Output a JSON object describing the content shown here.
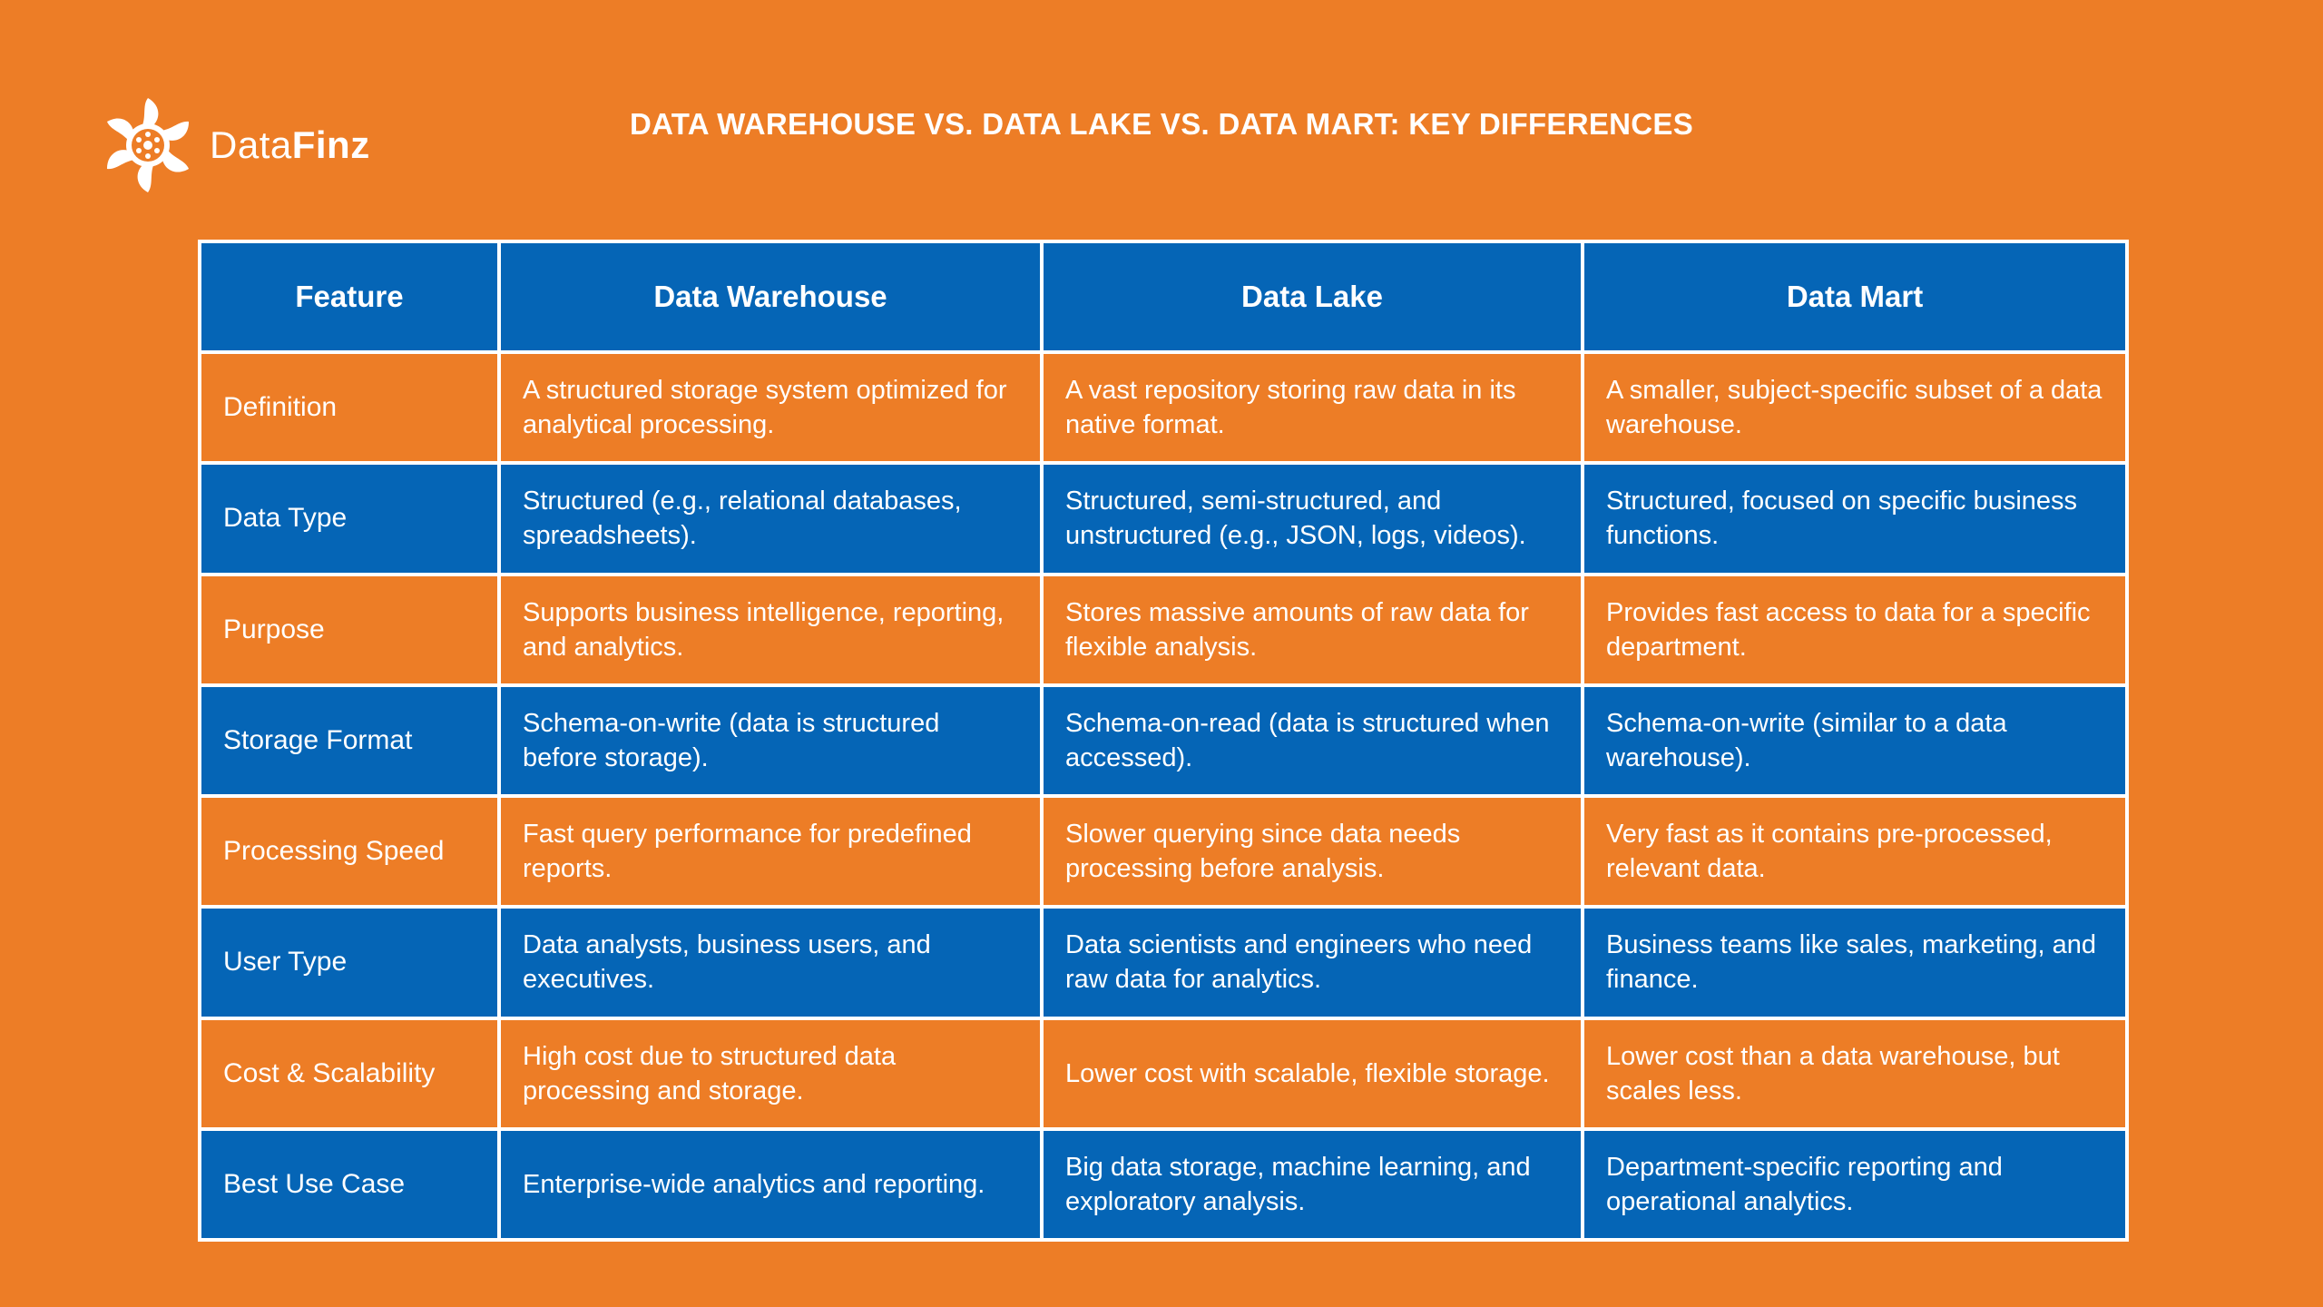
{
  "brand": {
    "name_light": "Data",
    "name_bold": "Finz",
    "background_color": "#ED7D26",
    "blue_color": "#0565B6"
  },
  "title": "DATA WAREHOUSE VS. DATA LAKE VS. DATA MART: KEY DIFFERENCES",
  "table": {
    "headers": [
      "Feature",
      "Data Warehouse",
      "Data Lake",
      "Data Mart"
    ],
    "rows": [
      {
        "feature": "Definition",
        "warehouse": "A structured storage system optimized for analytical processing.",
        "lake": "A vast repository storing raw data in its native format.",
        "mart": "A smaller, subject-specific subset of a data warehouse."
      },
      {
        "feature": "Data Type",
        "warehouse": "Structured (e.g., relational databases, spreadsheets).",
        "lake": "Structured, semi-structured, and unstructured (e.g., JSON, logs, videos).",
        "mart": "Structured, focused on specific business functions."
      },
      {
        "feature": "Purpose",
        "warehouse": "Supports business intelligence, reporting, and analytics.",
        "lake": "Stores massive amounts of raw data for flexible analysis.",
        "mart": "Provides fast access to data for a specific department."
      },
      {
        "feature": "Storage Format",
        "warehouse": "Schema-on-write (data is structured before storage).",
        "lake": "Schema-on-read (data is structured when accessed).",
        "mart": "Schema-on-write (similar to a data warehouse)."
      },
      {
        "feature": "Processing Speed",
        "warehouse": "Fast query performance for predefined reports.",
        "lake": "Slower querying since data needs processing before analysis.",
        "mart": "Very fast as it contains pre-processed, relevant data."
      },
      {
        "feature": "User Type",
        "warehouse": "Data analysts, business users, and executives.",
        "lake": "Data scientists and engineers who need raw data for analytics.",
        "mart": "Business teams like sales, marketing, and finance."
      },
      {
        "feature": "Cost & Scalability",
        "warehouse": "High cost due to structured data processing and storage.",
        "lake": "Lower cost with scalable, flexible storage.",
        "mart": "Lower cost than a data warehouse, but scales less."
      },
      {
        "feature": "Best Use Case",
        "warehouse": "Enterprise-wide analytics and reporting.",
        "lake": "Big data storage, machine learning, and exploratory analysis.",
        "mart": "Department-specific reporting and operational analytics."
      }
    ]
  }
}
